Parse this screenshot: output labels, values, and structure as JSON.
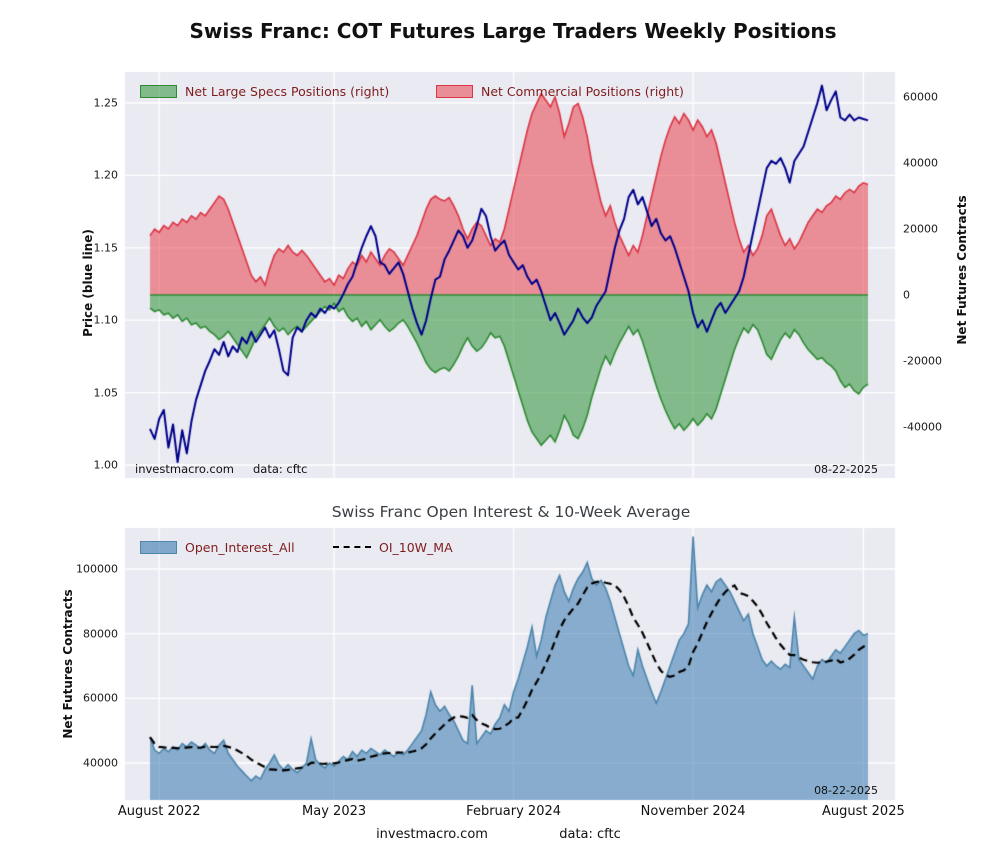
{
  "page": {
    "title": "Swiss Franc: COT Futures Large Traders Weekly Positions"
  },
  "footer": {
    "watermark": "investmacro.com",
    "source": "data: cftc"
  },
  "chart_data": [
    {
      "type": "area+line",
      "panel": "top",
      "x_axis": {
        "unit": "weekly",
        "n_points": 157,
        "ticks": [
          {
            "label": "August 2022",
            "week": 2
          },
          {
            "label": "May 2023",
            "week": 40
          },
          {
            "label": "February 2024",
            "week": 79
          },
          {
            "label": "November 2024",
            "week": 118
          },
          {
            "label": "August 2025",
            "week": 155
          }
        ]
      },
      "left_axis": {
        "label": "Price (blue line)",
        "range": [
          0.991,
          1.271
        ],
        "ticks": [
          1.0,
          1.05,
          1.1,
          1.15,
          1.2,
          1.25
        ]
      },
      "right_axis": {
        "label": "Net Futures Contracts",
        "range": [
          -55000,
          67500
        ],
        "ticks": [
          -40000,
          -20000,
          0,
          20000,
          40000,
          60000
        ]
      },
      "annotations": {
        "watermark": "investmacro.com",
        "source": "data: cftc",
        "date": "08-22-2025"
      },
      "series": [
        {
          "name": "Price",
          "type": "line",
          "axis": "left",
          "color": "#00008b",
          "values": [
            1.025,
            1.018,
            1.032,
            1.038,
            1.012,
            1.028,
            1.002,
            1.024,
            1.008,
            1.03,
            1.045,
            1.055,
            1.065,
            1.072,
            1.08,
            1.076,
            1.085,
            1.075,
            1.082,
            1.078,
            1.088,
            1.084,
            1.092,
            1.085,
            1.09,
            1.095,
            1.088,
            1.093,
            1.08,
            1.065,
            1.062,
            1.088,
            1.095,
            1.092,
            1.1,
            1.105,
            1.102,
            1.108,
            1.105,
            1.11,
            1.108,
            1.112,
            1.118,
            1.125,
            1.13,
            1.14,
            1.15,
            1.158,
            1.165,
            1.158,
            1.14,
            1.138,
            1.132,
            1.136,
            1.14,
            1.132,
            1.12,
            1.108,
            1.098,
            1.09,
            1.1,
            1.115,
            1.128,
            1.13,
            1.142,
            1.148,
            1.155,
            1.162,
            1.158,
            1.15,
            1.155,
            1.165,
            1.177,
            1.172,
            1.158,
            1.148,
            1.152,
            1.155,
            1.145,
            1.14,
            1.135,
            1.138,
            1.13,
            1.125,
            1.128,
            1.12,
            1.11,
            1.1,
            1.105,
            1.098,
            1.09,
            1.095,
            1.1,
            1.108,
            1.102,
            1.098,
            1.102,
            1.11,
            1.115,
            1.12,
            1.135,
            1.15,
            1.162,
            1.17,
            1.185,
            1.19,
            1.18,
            1.185,
            1.175,
            1.165,
            1.17,
            1.16,
            1.155,
            1.158,
            1.15,
            1.14,
            1.13,
            1.12,
            1.105,
            1.095,
            1.1,
            1.092,
            1.1,
            1.108,
            1.112,
            1.105,
            1.11,
            1.115,
            1.12,
            1.13,
            1.145,
            1.16,
            1.175,
            1.19,
            1.205,
            1.21,
            1.208,
            1.212,
            1.205,
            1.195,
            1.21,
            1.215,
            1.22,
            1.23,
            1.24,
            1.25,
            1.262,
            1.245,
            1.252,
            1.258,
            1.24,
            1.238,
            1.242,
            1.238,
            1.24,
            1.239,
            1.238
          ]
        },
        {
          "name": "Net Large Specs Positions (right)",
          "type": "area",
          "axis": "right",
          "color": "#2e8b32",
          "values": [
            -4000,
            -5000,
            -4500,
            -6000,
            -5500,
            -7000,
            -6000,
            -8000,
            -7000,
            -9000,
            -8500,
            -10000,
            -9500,
            -11000,
            -12000,
            -13500,
            -12500,
            -11000,
            -13000,
            -15000,
            -17000,
            -19000,
            -16000,
            -13000,
            -11000,
            -9000,
            -7000,
            -9500,
            -11000,
            -10000,
            -12000,
            -10500,
            -9500,
            -11000,
            -9500,
            -8000,
            -6500,
            -5000,
            -3500,
            -4500,
            -2500,
            -5000,
            -4000,
            -6500,
            -8000,
            -7000,
            -9500,
            -8000,
            -10500,
            -9000,
            -7500,
            -9500,
            -11000,
            -10000,
            -8500,
            -7500,
            -9500,
            -12000,
            -14500,
            -17500,
            -20500,
            -22500,
            -23500,
            -22500,
            -22000,
            -23000,
            -21000,
            -18500,
            -15500,
            -13000,
            -15500,
            -17000,
            -16000,
            -14000,
            -11500,
            -13000,
            -12500,
            -15500,
            -20000,
            -24500,
            -29000,
            -33500,
            -38000,
            -41500,
            -43500,
            -45500,
            -44000,
            -42500,
            -44500,
            -41000,
            -36500,
            -39000,
            -42500,
            -43500,
            -40500,
            -36500,
            -31000,
            -26500,
            -22000,
            -18500,
            -21000,
            -17500,
            -14500,
            -12000,
            -9500,
            -12000,
            -10500,
            -14000,
            -18500,
            -23000,
            -27500,
            -31500,
            -35000,
            -38000,
            -40500,
            -39000,
            -41000,
            -39500,
            -37500,
            -39500,
            -38000,
            -36000,
            -37500,
            -34500,
            -30000,
            -25500,
            -21000,
            -16500,
            -13000,
            -10000,
            -11500,
            -9000,
            -10500,
            -14000,
            -18000,
            -19500,
            -16500,
            -13500,
            -11500,
            -13000,
            -10500,
            -12000,
            -14500,
            -16500,
            -18000,
            -19500,
            -19000,
            -20500,
            -21500,
            -23000,
            -26000,
            -28000,
            -27000,
            -29000,
            -30000,
            -28000,
            -27000
          ]
        },
        {
          "name": "Net Commercial Positions (right)",
          "type": "area",
          "axis": "right",
          "color": "#dc3545",
          "values": [
            18000,
            20000,
            19000,
            21000,
            20000,
            22000,
            21000,
            23000,
            22000,
            24000,
            23000,
            25000,
            24000,
            26000,
            28000,
            30000,
            29000,
            26000,
            22000,
            18000,
            14000,
            10000,
            6000,
            4000,
            5500,
            3000,
            8000,
            12000,
            14000,
            13000,
            15000,
            13000,
            12000,
            13500,
            12000,
            10000,
            8000,
            6000,
            4000,
            5000,
            3000,
            6000,
            5000,
            8000,
            10000,
            9000,
            12000,
            10000,
            13000,
            11000,
            9000,
            12000,
            14000,
            13000,
            11000,
            9000,
            12000,
            15000,
            18000,
            22000,
            26000,
            29000,
            30000,
            29000,
            28500,
            29500,
            27000,
            24000,
            20000,
            17000,
            20000,
            22000,
            21000,
            18000,
            15000,
            17000,
            16000,
            20000,
            26000,
            32000,
            38000,
            44000,
            50000,
            55000,
            58000,
            61000,
            59000,
            57000,
            60000,
            55000,
            48000,
            52000,
            57000,
            58000,
            54000,
            48000,
            40000,
            34000,
            28000,
            24000,
            27000,
            22000,
            18000,
            15000,
            12000,
            15000,
            13000,
            18000,
            24000,
            30000,
            36000,
            42000,
            47000,
            51000,
            54000,
            52000,
            55000,
            53000,
            50000,
            53000,
            51000,
            48000,
            50000,
            46000,
            40000,
            34000,
            28000,
            22000,
            17000,
            13000,
            15000,
            12000,
            14000,
            18000,
            24000,
            26000,
            22000,
            18000,
            15000,
            17000,
            14000,
            16000,
            19000,
            22000,
            24000,
            26000,
            25000,
            27000,
            28000,
            30000,
            29000,
            31000,
            32000,
            31000,
            33000,
            34000,
            33500
          ]
        }
      ]
    },
    {
      "type": "area+line",
      "panel": "bottom",
      "title": "Swiss Franc Open Interest & 10-Week Average",
      "y_axis": {
        "label": "Net Futures Contracts",
        "range": [
          28500,
          112500
        ],
        "ticks": [
          40000,
          60000,
          80000,
          100000
        ]
      },
      "annotations": {
        "date": "08-22-2025"
      },
      "series": [
        {
          "name": "Open_Interest_All",
          "type": "area",
          "color": "#4c86ad",
          "values": [
            48000,
            44000,
            43000,
            44500,
            43500,
            45000,
            44000,
            46000,
            45000,
            46500,
            45500,
            44500,
            46000,
            44000,
            43000,
            45500,
            47000,
            43000,
            41000,
            39000,
            37500,
            36000,
            34500,
            36000,
            35000,
            38000,
            40000,
            42500,
            39500,
            38000,
            39500,
            38000,
            37000,
            38500,
            40000,
            47500,
            41000,
            39500,
            38500,
            40000,
            39000,
            40500,
            42000,
            41000,
            43500,
            42000,
            44000,
            43000,
            44500,
            43500,
            42500,
            44000,
            43000,
            42000,
            43500,
            42500,
            44000,
            46000,
            48000,
            50000,
            55000,
            62000,
            58000,
            56000,
            57500,
            55000,
            53000,
            50000,
            47000,
            46000,
            64000,
            46000,
            48000,
            50000,
            49000,
            52000,
            54000,
            58000,
            56000,
            62000,
            66000,
            71000,
            76000,
            82000,
            73000,
            78000,
            85000,
            90000,
            95000,
            98000,
            93000,
            90000,
            94000,
            97000,
            99000,
            102000,
            97000,
            95000,
            96500,
            94000,
            90000,
            85000,
            80000,
            75000,
            70000,
            67000,
            75000,
            70000,
            66000,
            62000,
            58500,
            62000,
            66000,
            70000,
            74000,
            78000,
            80000,
            83000,
            110000,
            88000,
            92000,
            95000,
            93000,
            96000,
            97000,
            95000,
            93000,
            90000,
            87000,
            84000,
            86000,
            80000,
            76000,
            72000,
            70000,
            71500,
            70000,
            69000,
            70500,
            69500,
            85000,
            72000,
            70000,
            68000,
            66000,
            70000,
            72000,
            71000,
            73000,
            75000,
            74000,
            76000,
            78000,
            80000,
            81000,
            79500,
            80000
          ]
        },
        {
          "name": "OI_10W_MA",
          "type": "dashed-line",
          "color": "#000000",
          "derived": "10-week moving average of Open_Interest_All",
          "ma_window": 10
        }
      ]
    }
  ]
}
